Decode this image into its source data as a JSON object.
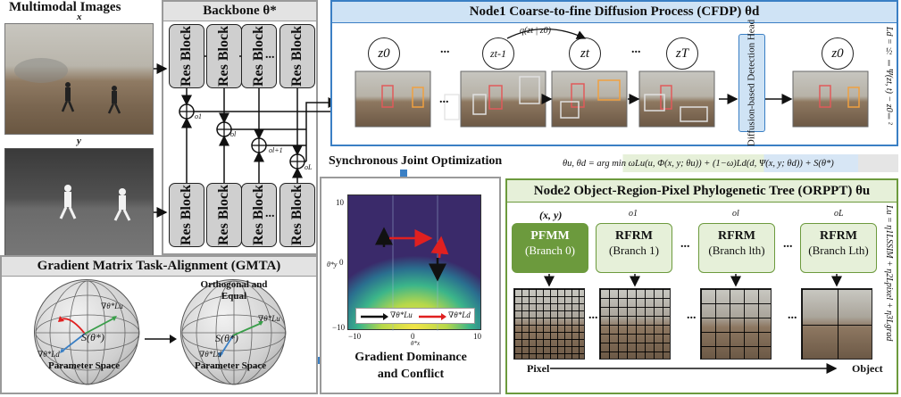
{
  "inputs": {
    "title": "Multimodal Images",
    "x_label": "x",
    "y_label": "y"
  },
  "backbone": {
    "title": "Backbone θ*",
    "block_label": "Res Block",
    "dots": "...",
    "outputs": [
      "o1",
      "ol",
      "ol+1",
      "oL"
    ]
  },
  "cfdp": {
    "title": "Node1 Coarse-to-fine Diffusion Process (CFDP) θd",
    "states": [
      "z0",
      "zt-1",
      "zt",
      "zT",
      "z0"
    ],
    "transition": "q(zt | z0)",
    "dots": "...",
    "head_label": "Diffusion-based Detection Head",
    "loss": "Ld = ½ ‖Ψ(zt, t) − z0‖²"
  },
  "joint": {
    "label": "Synchronous Joint Optimization",
    "equation": "θu, θd = arg min ωLu(u, Φ(x, y; θu)) + (1−ω)Ld(d, Ψ(x, y; θd)) + S(θ*)"
  },
  "landscape": {
    "y_ticks": [
      "10",
      "0",
      "−10"
    ],
    "x_ticks": [
      "−10",
      "0",
      "10"
    ],
    "y_label": "θ*y",
    "x_label": "θ*x",
    "legend": [
      "∇θ*Lu",
      "∇θ*Ld"
    ],
    "caption_line1": "Gradient Dominance",
    "caption_line2": "and Conflict"
  },
  "orppt": {
    "title": "Node2 Object-Region-Pixel Phylogenetic Tree (ORPPT) θu",
    "branches": [
      {
        "top": "(x, y)",
        "name": "PFMM",
        "sub": "(Branch 0)"
      },
      {
        "top": "o1",
        "name": "RFRM",
        "sub": "(Branch 1)"
      },
      {
        "top": "ol",
        "name": "RFRM",
        "sub": "(Branch lth)"
      },
      {
        "top": "oL",
        "name": "RFRM",
        "sub": "(Branch Lth)"
      }
    ],
    "dots": "...",
    "axis_left": "Pixel",
    "axis_right": "Object",
    "loss": "Lu = η1LSSIM + η2Lpixel + η3Lgrad"
  },
  "gmta": {
    "title": "Gradient Matrix Task-Alignment (GMTA)",
    "left_reg": "S(θ*)",
    "left_space": "Parameter Space",
    "right_title_1": "Orthogonal and",
    "right_title_2": "Equal",
    "right_reg": "S(θ*)",
    "right_space": "Parameter Space",
    "grad_u": "∇θ*Lu",
    "grad_d": "∇θ*Ld"
  },
  "colors": {
    "blue": "#3a7fc4",
    "green": "#6c9a3d",
    "gray": "#9a9a9a",
    "red": "#e02020"
  }
}
